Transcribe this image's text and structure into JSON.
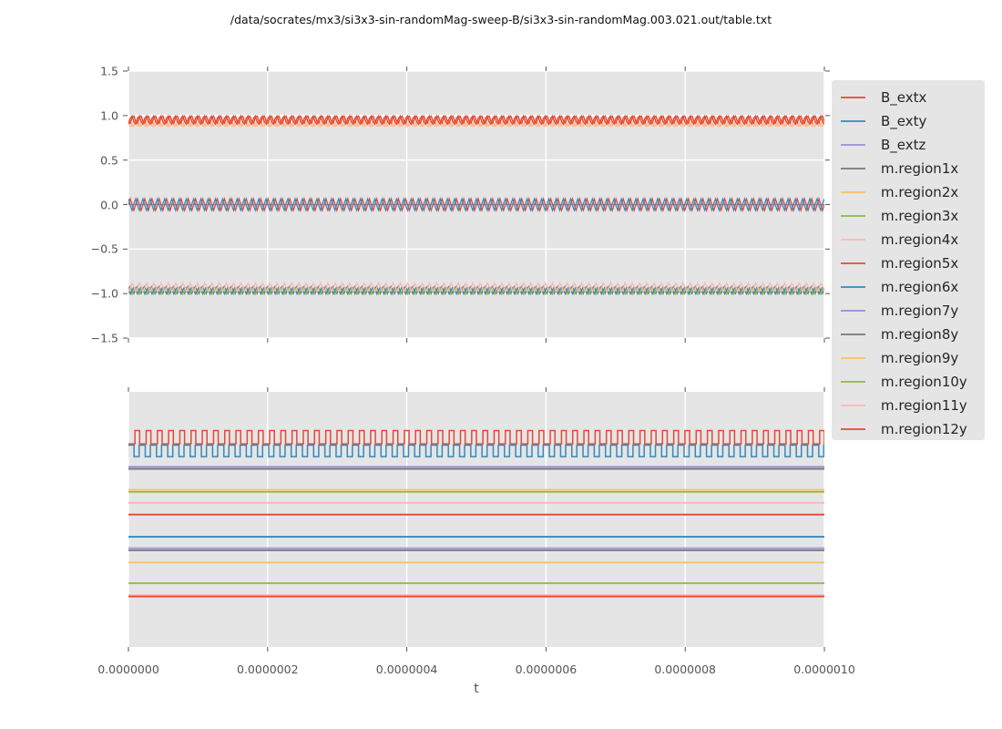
{
  "title": "/data/socrates/mx3/si3x3-sin-randomMag-sweep-B/si3x3-sin-randomMag.003.021.out/table.txt",
  "axes": {
    "xlabel": "t",
    "x_tick_labels": [
      "0.0000000",
      "0.0000002",
      "0.0000004",
      "0.0000006",
      "0.0000008",
      "0.0000010"
    ],
    "top_y_tick_labels": [
      "1.5",
      "1.0",
      "0.5",
      "0.0",
      "−0.5",
      "−1.0",
      "−1.5"
    ],
    "top_y_tick_values": [
      1.5,
      1.0,
      0.5,
      0.0,
      -0.5,
      -1.0,
      -1.5
    ]
  },
  "colors": {
    "panel_bg": "#e5e5e5",
    "grid": "#ffffff",
    "tick": "#555555",
    "tick_text": "#555555",
    "title_text": "#111111",
    "red": "#E24A33",
    "blue": "#348ABD",
    "purple": "#988ED5",
    "gray": "#777777",
    "orange": "#FBC15E",
    "green": "#8EBA42",
    "pink": "#FFB5B8"
  },
  "legend": {
    "entries": [
      {
        "label": "B_extx",
        "color": "#E24A33"
      },
      {
        "label": "B_exty",
        "color": "#348ABD"
      },
      {
        "label": "B_extz",
        "color": "#988ED5"
      },
      {
        "label": "m.region1x",
        "color": "#777777"
      },
      {
        "label": "m.region2x",
        "color": "#FBC15E"
      },
      {
        "label": "m.region3x",
        "color": "#8EBA42"
      },
      {
        "label": "m.region4x",
        "color": "#FFB5B8"
      },
      {
        "label": "m.region5x",
        "color": "#E24A33"
      },
      {
        "label": "m.region6x",
        "color": "#348ABD"
      },
      {
        "label": "m.region7y",
        "color": "#988ED5"
      },
      {
        "label": "m.region8y",
        "color": "#777777"
      },
      {
        "label": "m.region9y",
        "color": "#FBC15E"
      },
      {
        "label": "m.region10y",
        "color": "#8EBA42"
      },
      {
        "label": "m.region11y",
        "color": "#FFB5B8"
      },
      {
        "label": "m.region12y",
        "color": "#E24A33"
      }
    ]
  },
  "chart_data": [
    {
      "type": "line",
      "panel": "top",
      "xlim": [
        0.0,
        1e-06
      ],
      "ylim": [
        -1.5,
        1.5
      ],
      "x_ticks": [
        0.0,
        2e-07,
        4e-07,
        6e-07,
        8e-07,
        1e-06
      ],
      "y_ticks": [
        1.5,
        1.0,
        0.5,
        0.0,
        -0.5,
        -1.0,
        -1.5
      ],
      "grid": "horizontal and vertical, white on gray",
      "note": "very dense unresolved oscillations rendered as bands; mean/amplitude are envelope estimates read from the pixels",
      "series": [
        {
          "name": "B_extz",
          "color": "#988ED5",
          "waveform": "constant",
          "mean": 0.0,
          "amplitude": 0.0
        },
        {
          "name": "B_extx",
          "color": "#E24A33",
          "waveform": "sine",
          "mean": 0.0,
          "amplitude": 0.065,
          "cycles": 96,
          "phase": 0.0
        },
        {
          "name": "B_exty",
          "color": "#348ABD",
          "waveform": "sine",
          "mean": 0.0,
          "amplitude": 0.065,
          "cycles": 96,
          "phase": 1.7
        },
        {
          "name": "m.region2x",
          "color": "#FBC15E",
          "waveform": "sine",
          "mean": 0.915,
          "amplitude": 0.045,
          "cycles": 96,
          "phase": 0.8
        },
        {
          "name": "m.region4x",
          "color": "#FFB5B8",
          "waveform": "sine",
          "mean": 0.915,
          "amplitude": 0.05,
          "cycles": 96,
          "phase": 2.3
        },
        {
          "name": "m.region5x",
          "color": "#E24A33",
          "waveform": "sine",
          "mean": 0.955,
          "amplitude": 0.045,
          "cycles": 96,
          "phase": 3.6
        },
        {
          "name": "m.region12y",
          "color": "#E24A33",
          "waveform": "sine",
          "mean": 0.95,
          "amplitude": 0.05,
          "cycles": 96,
          "phase": 5.1
        },
        {
          "name": "m.region1x",
          "color": "#777777",
          "waveform": "sine",
          "mean": -0.96,
          "amplitude": 0.045,
          "cycles": 96,
          "phase": 0.4
        },
        {
          "name": "m.region3x",
          "color": "#8EBA42",
          "waveform": "sine",
          "mean": -0.97,
          "amplitude": 0.04,
          "cycles": 96,
          "phase": 1.9
        },
        {
          "name": "m.region6x",
          "color": "#348ABD",
          "waveform": "sine",
          "mean": -0.965,
          "amplitude": 0.04,
          "cycles": 96,
          "phase": 3.2
        },
        {
          "name": "m.region11y",
          "color": "#FFB5B8",
          "waveform": "sine",
          "mean": -0.93,
          "amplitude": 0.05,
          "cycles": 96,
          "phase": 4.5
        }
      ]
    },
    {
      "type": "line",
      "panel": "bottom",
      "xlim": [
        0.0,
        1e-06
      ],
      "ylim": "unlabeled (no y tick labels shown in figure)",
      "grid": "vertical only, white on gray",
      "note": "y_frac values are fractions of panel height measured from the panel top",
      "series": [
        {
          "name": "B_extx",
          "color": "#E24A33",
          "waveform": "square",
          "y_frac_high": 0.152,
          "y_frac_low": 0.204,
          "cycles": 62,
          "duty": 0.42,
          "phase": 0.0
        },
        {
          "name": "B_exty",
          "color": "#348ABD",
          "waveform": "square",
          "y_frac_high": 0.209,
          "y_frac_low": 0.254,
          "cycles": 62,
          "duty": 0.55,
          "phase": 0.5
        },
        {
          "name": "B_extz",
          "color": "#988ED5",
          "waveform": "constant",
          "y_frac": 0.294
        },
        {
          "name": "m.region1x",
          "color": "#777777",
          "waveform": "constant",
          "y_frac": 0.302
        },
        {
          "name": "m.region2x",
          "color": "#FBC15E",
          "waveform": "constant",
          "y_frac": 0.384
        },
        {
          "name": "m.region3x",
          "color": "#8EBA42",
          "waveform": "constant",
          "y_frac": 0.392
        },
        {
          "name": "m.region4x",
          "color": "#FFB5B8",
          "waveform": "constant",
          "y_frac": 0.435
        },
        {
          "name": "m.region5x",
          "color": "#E24A33",
          "waveform": "constant",
          "y_frac": 0.481
        },
        {
          "name": "m.region6x",
          "color": "#348ABD",
          "waveform": "constant",
          "y_frac": 0.568
        },
        {
          "name": "m.region7y",
          "color": "#988ED5",
          "waveform": "constant",
          "y_frac": 0.613
        },
        {
          "name": "m.region8y",
          "color": "#777777",
          "waveform": "constant",
          "y_frac": 0.621
        },
        {
          "name": "m.region9y",
          "color": "#FBC15E",
          "waveform": "constant",
          "y_frac": 0.669
        },
        {
          "name": "m.region10y",
          "color": "#8EBA42",
          "waveform": "constant",
          "y_frac": 0.75
        },
        {
          "name": "m.region11y",
          "color": "#FFB5B8",
          "waveform": "constant",
          "y_frac": 0.797
        },
        {
          "name": "m.region12y",
          "color": "#E24A33",
          "waveform": "constant",
          "y_frac": 0.802
        }
      ]
    }
  ]
}
